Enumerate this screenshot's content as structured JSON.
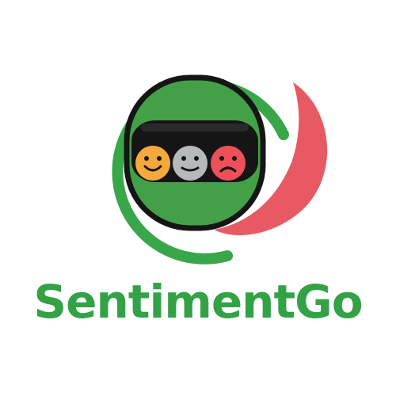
{
  "brand": {
    "name": "SentimentGo"
  },
  "colors": {
    "brand_green": "#3aa64a",
    "helmet_green": "#43a047",
    "outline": "#151515",
    "swoosh_red": "#e85a63",
    "face_happy": "#f6a93b",
    "face_neutral": "#b7b9bc",
    "face_sad": "#ee5059",
    "text_green": "#33a246"
  },
  "icons": {
    "logo": "helmet-with-emotion-faces-logo",
    "face_happy": "happy-face-icon",
    "face_neutral": "neutral-face-icon",
    "face_sad": "sad-face-icon"
  }
}
